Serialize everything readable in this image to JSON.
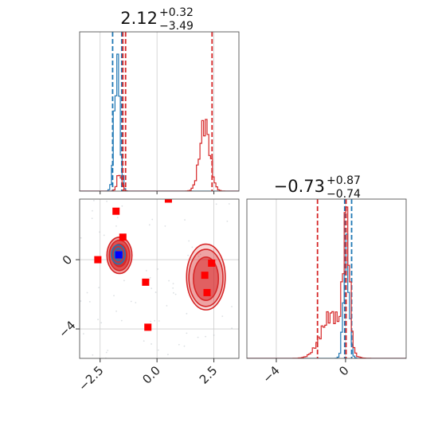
{
  "chart_data": {
    "type": "corner",
    "parameters": [
      {
        "title_value": "2.12",
        "title_plus": "+0.32",
        "title_minus": "−3.49",
        "range": [
          -3.4,
          3.6
        ]
      },
      {
        "title_value": "−0.73",
        "title_plus": "+0.87",
        "title_minus": "−0.74",
        "range": [
          -5.7,
          3.5
        ]
      }
    ],
    "x_ticks": [
      {
        "value": -2.5,
        "label": "−2.5"
      },
      {
        "value": 0.0,
        "label": "0.0"
      },
      {
        "value": 2.5,
        "label": "2.5"
      }
    ],
    "y_ticks": [
      {
        "value": 0,
        "label": "0"
      },
      {
        "value": -4,
        "label": "−4"
      }
    ],
    "x2_ticks": [
      {
        "value": -4,
        "label": "−4"
      },
      {
        "value": 0,
        "label": "0"
      }
    ],
    "grid": true,
    "series": [
      {
        "color": "#1f77b4",
        "hist1": {
          "modes": [
            {
              "center": -1.75,
              "sigma": 0.12,
              "weight": 1.0
            }
          ],
          "peak": 0.86
        },
        "quantiles1": [
          -1.95,
          -1.55
        ],
        "hist2": {
          "modes": [
            {
              "center": 0.05,
              "sigma": 0.16,
              "weight": 1.0
            }
          ],
          "peak": 0.78
        },
        "quantiles2": [
          -0.05,
          0.35
        ],
        "contours": [
          {
            "cx": -1.7,
            "cy": 0.3,
            "rx": 0.18,
            "ry": 0.35
          },
          {
            "cx": -1.7,
            "cy": 0.3,
            "rx": 0.3,
            "ry": 0.55
          }
        ]
      },
      {
        "color": "#d62728",
        "hist1": {
          "modes": [
            {
              "center": -1.65,
              "sigma": 0.1,
              "weight": 0.2
            },
            {
              "center": 2.1,
              "sigma": 0.22,
              "weight": 0.76
            }
          ],
          "peak": 0.45
        },
        "quantiles1": [
          -1.38,
          -1.5,
          2.42
        ],
        "hist2": {
          "modes": [
            {
              "center": -0.8,
              "sigma": 0.6,
              "weight": 0.32
            },
            {
              "center": 0.05,
              "sigma": 0.18,
              "weight": 0.95
            }
          ],
          "peak": 0.95
        },
        "quantiles2": [
          -1.62,
          0.03
        ],
        "contours": [
          {
            "cx": -1.65,
            "cy": 0.25,
            "rx": 0.32,
            "ry": 0.65
          },
          {
            "cx": -1.65,
            "cy": 0.25,
            "rx": 0.45,
            "ry": 0.88
          },
          {
            "cx": -1.65,
            "cy": 0.25,
            "rx": 0.55,
            "ry": 1.05
          },
          {
            "cx": 2.15,
            "cy": -1.1,
            "rx": 0.55,
            "ry": 1.25
          },
          {
            "cx": 2.15,
            "cy": -1.05,
            "rx": 0.75,
            "ry": 1.65
          },
          {
            "cx": 2.15,
            "cy": -1.0,
            "rx": 0.85,
            "ry": 1.9
          }
        ]
      }
    ],
    "red_markers": [
      {
        "x": -1.8,
        "y": 2.8
      },
      {
        "x": 0.5,
        "y": 3.5
      },
      {
        "x": -1.5,
        "y": 1.3
      },
      {
        "x": -2.6,
        "y": 0.0
      },
      {
        "x": -0.5,
        "y": -1.3
      },
      {
        "x": -0.4,
        "y": -3.9
      },
      {
        "x": 2.1,
        "y": -0.9
      },
      {
        "x": 2.4,
        "y": -0.2
      },
      {
        "x": 2.2,
        "y": -1.9
      }
    ],
    "blue_markers": [
      {
        "x": -1.68,
        "y": 0.28
      }
    ]
  }
}
